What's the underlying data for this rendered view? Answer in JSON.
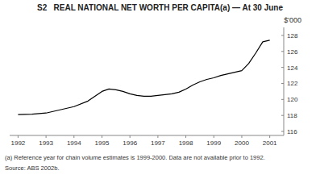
{
  "chart_data": {
    "type": "line",
    "title": "S2   REAL NATIONAL NET WORTH PER CAPITA(a) — At 30 June",
    "ylabel": "$'000",
    "annotations": [
      "(a) Reference year for chain volume estimates is 1999-2000. Data are not available prior to 1992.",
      "Source: ABS 2002b."
    ],
    "x": [
      1992,
      1992.5,
      1993,
      1993.5,
      1994,
      1994.5,
      1995,
      1995.25,
      1995.5,
      1995.75,
      1996,
      1996.25,
      1996.5,
      1996.75,
      1997,
      1997.25,
      1997.5,
      1997.75,
      1998,
      1998.25,
      1998.5,
      1998.75,
      1999,
      1999.25,
      1999.5,
      1999.75,
      2000,
      2000.25,
      2000.5,
      2000.75,
      2001
    ],
    "values": [
      118.1,
      118.15,
      118.3,
      118.7,
      119.1,
      119.8,
      121.0,
      121.3,
      121.2,
      121.0,
      120.7,
      120.5,
      120.4,
      120.4,
      120.5,
      120.6,
      120.7,
      120.9,
      121.3,
      121.8,
      122.2,
      122.5,
      122.7,
      123.0,
      123.2,
      123.4,
      123.6,
      124.5,
      125.8,
      127.2,
      127.4
    ],
    "color": "#000000",
    "xlim": [
      1991.7,
      2001.5
    ],
    "ylim": [
      115.5,
      129.0
    ],
    "xticks": [
      1992,
      1993,
      1994,
      1995,
      1996,
      1997,
      1998,
      1999,
      2000,
      2001
    ],
    "yticks": [
      116,
      118,
      120,
      122,
      124,
      126,
      128
    ],
    "grid": false
  }
}
